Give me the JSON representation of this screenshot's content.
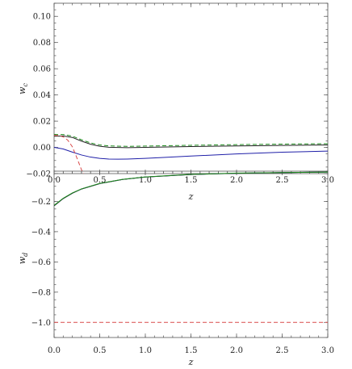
{
  "chart_data": [
    {
      "type": "line",
      "title": "",
      "xlabel": "z",
      "ylabel": "w_c",
      "xlim": [
        0,
        3.0
      ],
      "ylim": [
        -0.02,
        0.11
      ],
      "x_ticks": [
        "0.0",
        "0.5",
        "1.0",
        "1.5",
        "2.0",
        "2.5",
        "3.0"
      ],
      "y_ticks": [
        "0.00",
        "0.02",
        "0.04",
        "0.06",
        "0.08",
        "0.10"
      ],
      "y_ticks_overlapped": [
        "-0.02"
      ],
      "grid": false,
      "series": [
        {
          "color": "#1f1fa8",
          "dash": "solid",
          "x": [
            0,
            0.1,
            0.2,
            0.3,
            0.4,
            0.5,
            0.6,
            0.7,
            0.8,
            1.0,
            1.2,
            1.5,
            2.0,
            2.5,
            3.0
          ],
          "y": [
            0.0,
            -0.0012,
            -0.0036,
            -0.0058,
            -0.0074,
            -0.0084,
            -0.0089,
            -0.009,
            -0.0089,
            -0.0084,
            -0.0077,
            -0.0066,
            -0.005,
            -0.0037,
            -0.0028
          ]
        },
        {
          "color": "#222222",
          "dash": "solid",
          "x": [
            0,
            0.1,
            0.2,
            0.3,
            0.4,
            0.5,
            0.6,
            0.8,
            1.0,
            1.5,
            2.0,
            2.5,
            3.0
          ],
          "y": [
            0.0085,
            0.0087,
            0.0076,
            0.0048,
            0.0024,
            0.0009,
            0.0001,
            -0.0002,
            0.0,
            0.0006,
            0.0011,
            0.0015,
            0.0019
          ]
        },
        {
          "color": "#1e8c1e",
          "dash": "dashed",
          "x": [
            0,
            0.1,
            0.2,
            0.3,
            0.4,
            0.5,
            0.6,
            0.8,
            1.0,
            1.5,
            2.0,
            2.5,
            3.0
          ],
          "y": [
            0.0098,
            0.0098,
            0.0086,
            0.0058,
            0.0034,
            0.0019,
            0.0011,
            0.0008,
            0.001,
            0.0016,
            0.0021,
            0.0025,
            0.0028
          ]
        },
        {
          "color": "#d94a4a",
          "dash": "dashed",
          "x": [
            0,
            0.05,
            0.1,
            0.15,
            0.2,
            0.25,
            0.3,
            0.33
          ],
          "y": [
            0.0092,
            0.009,
            0.008,
            0.0055,
            0.0005,
            -0.008,
            -0.017,
            -0.021
          ]
        }
      ]
    },
    {
      "type": "line",
      "title": "",
      "xlabel": "z",
      "ylabel": "w_d",
      "xlim": [
        0,
        3.0
      ],
      "ylim": [
        -1.1,
        0.0
      ],
      "x_ticks": [
        "0.0",
        "0.5",
        "1.0",
        "1.5",
        "2.0",
        "2.5",
        "3.0"
      ],
      "y_ticks": [
        "-0.2",
        "-0.4",
        "-0.6",
        "-0.8",
        "-1.0"
      ],
      "grid": false,
      "series": [
        {
          "color": "#1f1fa8",
          "dash": "solid",
          "x": [
            0,
            0.1,
            0.2,
            0.3,
            0.5,
            0.75,
            1.0,
            1.5,
            2.0,
            2.5,
            3.0
          ],
          "y": [
            -0.229,
            -0.181,
            -0.146,
            -0.118,
            -0.082,
            -0.055,
            -0.039,
            -0.022,
            -0.014,
            -0.009,
            -0.006
          ]
        },
        {
          "color": "#222222",
          "dash": "solid",
          "x": [
            0,
            0.1,
            0.2,
            0.3,
            0.5,
            0.75,
            1.0,
            1.5,
            2.0,
            2.5,
            3.0
          ],
          "y": [
            -0.229,
            -0.181,
            -0.146,
            -0.118,
            -0.082,
            -0.055,
            -0.039,
            -0.022,
            -0.014,
            -0.009,
            -0.006
          ]
        },
        {
          "color": "#1e8c1e",
          "dash": "solid",
          "x": [
            0,
            0.1,
            0.2,
            0.3,
            0.5,
            0.75,
            1.0,
            1.5,
            2.0,
            2.5,
            3.0
          ],
          "y": [
            -0.226,
            -0.179,
            -0.144,
            -0.117,
            -0.081,
            -0.054,
            -0.038,
            -0.021,
            -0.013,
            -0.009,
            -0.006
          ]
        },
        {
          "color": "#d94a4a",
          "dash": "dashed",
          "x": [
            0,
            3.0
          ],
          "y": [
            -1.0,
            -1.0
          ]
        }
      ]
    }
  ]
}
